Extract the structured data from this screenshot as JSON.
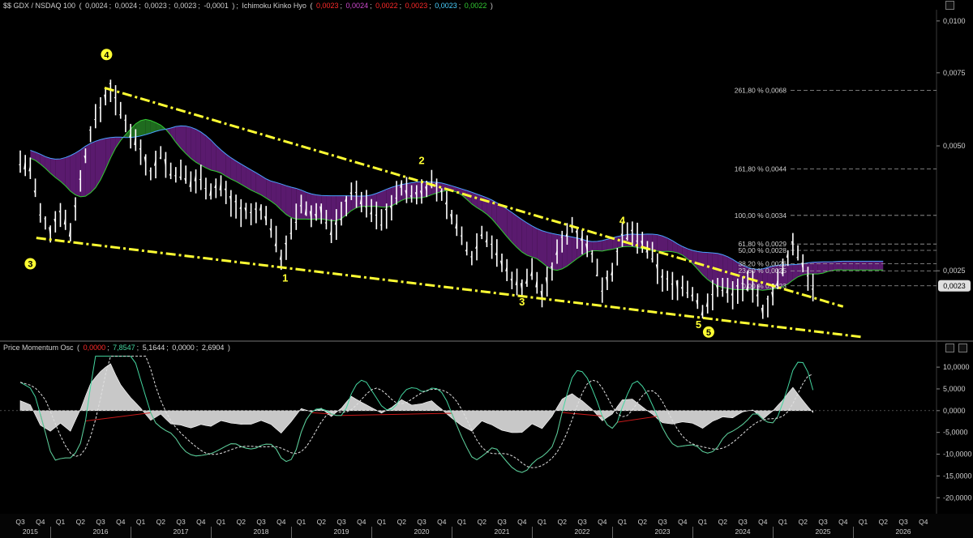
{
  "main_header": {
    "symbol": "$$ GDX / NSDAQ 100",
    "ohlc": [
      "0,0024",
      "0,0024",
      "0,0023",
      "0,0023",
      "-0,0001"
    ],
    "indicator": "Ichimoku Kinko Hyo",
    "ichimoku_values": [
      {
        "text": "0,0023",
        "color": "#ff2a2a"
      },
      {
        "text": "0,0024",
        "color": "#d04ad0"
      },
      {
        "text": "0,0022",
        "color": "#ff2a2a"
      },
      {
        "text": "0,0023",
        "color": "#ff2a2a"
      },
      {
        "text": "0,0023",
        "color": "#4ad0ff"
      },
      {
        "text": "0,0022",
        "color": "#33cc33"
      }
    ]
  },
  "osc_header": {
    "name": "Price Momentum Osc",
    "values": [
      {
        "text": "0,0000",
        "color": "#ff2a2a"
      },
      {
        "text": "7,8547",
        "color": "#44d6a0"
      },
      {
        "text": "5,1644",
        "color": "#dddddd"
      },
      {
        "text": "0,0000",
        "color": "#dddddd"
      },
      {
        "text": "2,6904",
        "color": "#dddddd"
      }
    ]
  },
  "colors": {
    "background": "#000000",
    "price_bars": "#ffffff",
    "cloud_bear": "#5a1a6e",
    "cloud_bull": "#1f6b1f",
    "span_a": "#33cc33",
    "span_b": "#4aa0ff",
    "trendline": "#ffff33",
    "wave_label": "#ffff33",
    "pmo_red": "#cc1a1a",
    "pmo_teal": "#44d6a0",
    "histogram": "#c8c8c8",
    "last_price_tag": "#e0e0e0"
  },
  "chart_data": [
    {
      "type": "line",
      "title": "$$ GDX / NSDAQ 100",
      "y_scale": "log",
      "ylim": [
        0.0017,
        0.0105
      ],
      "y_ticks": [
        {
          "value": 0.01,
          "label": "0,0100"
        },
        {
          "value": 0.0075,
          "label": "0,0075"
        },
        {
          "value": 0.005,
          "label": "0,0050"
        },
        {
          "value": 0.0025,
          "label": "0,0025"
        }
      ],
      "last_price": {
        "value": 0.0023,
        "label": "0,0023"
      },
      "x_quarters": [
        "Q3",
        "Q4",
        "Q1",
        "Q2",
        "Q3",
        "Q4",
        "Q1",
        "Q2",
        "Q3",
        "Q4",
        "Q1",
        "Q2",
        "Q3",
        "Q4",
        "Q1",
        "Q2",
        "Q3",
        "Q4",
        "Q1",
        "Q2",
        "Q3",
        "Q4",
        "Q1",
        "Q2",
        "Q3",
        "Q4",
        "Q1",
        "Q2",
        "Q3",
        "Q4",
        "Q1",
        "Q2",
        "Q3",
        "Q4",
        "Q1",
        "Q2",
        "Q3",
        "Q4",
        "Q1",
        "Q2",
        "Q3",
        "Q4",
        "Q1",
        "Q2",
        "Q3",
        "Q4"
      ],
      "x_years": [
        {
          "label": "2015",
          "quarter_index": 0.5
        },
        {
          "label": "2016",
          "quarter_index": 4
        },
        {
          "label": "2017",
          "quarter_index": 8
        },
        {
          "label": "2018",
          "quarter_index": 12
        },
        {
          "label": "2019",
          "quarter_index": 16
        },
        {
          "label": "2020",
          "quarter_index": 20
        },
        {
          "label": "2021",
          "quarter_index": 24
        },
        {
          "label": "2022",
          "quarter_index": 28
        },
        {
          "label": "2023",
          "quarter_index": 32
        },
        {
          "label": "2024",
          "quarter_index": 36
        },
        {
          "label": "2025",
          "quarter_index": 40
        },
        {
          "label": "2026",
          "quarter_index": 44
        }
      ],
      "series": [
        {
          "name": "$$ GDX / NSDAQ 100",
          "points": [
            [
              0.0,
              0.0046
            ],
            [
              0.5,
              0.0044
            ],
            [
              1.0,
              0.0034
            ],
            [
              1.5,
              0.0031
            ],
            [
              2.0,
              0.0035
            ],
            [
              2.5,
              0.0031
            ],
            [
              3.0,
              0.0041
            ],
            [
              3.5,
              0.0054
            ],
            [
              4.0,
              0.0062
            ],
            [
              4.5,
              0.0069
            ],
            [
              5.0,
              0.006
            ],
            [
              5.5,
              0.0054
            ],
            [
              6.0,
              0.0049
            ],
            [
              6.5,
              0.0043
            ],
            [
              7.0,
              0.0048
            ],
            [
              7.5,
              0.0043
            ],
            [
              8.0,
              0.0043
            ],
            [
              8.5,
              0.0041
            ],
            [
              9.0,
              0.0042
            ],
            [
              9.5,
              0.0039
            ],
            [
              10.0,
              0.004
            ],
            [
              10.5,
              0.0037
            ],
            [
              11.0,
              0.0035
            ],
            [
              11.5,
              0.0034
            ],
            [
              12.0,
              0.0035
            ],
            [
              12.5,
              0.0032
            ],
            [
              13.0,
              0.0027
            ],
            [
              13.5,
              0.0031
            ],
            [
              14.0,
              0.0036
            ],
            [
              14.5,
              0.0034
            ],
            [
              15.0,
              0.0035
            ],
            [
              15.5,
              0.0031
            ],
            [
              16.0,
              0.0034
            ],
            [
              16.5,
              0.0039
            ],
            [
              17.0,
              0.0037
            ],
            [
              17.5,
              0.0035
            ],
            [
              18.0,
              0.0033
            ],
            [
              18.5,
              0.0036
            ],
            [
              19.0,
              0.004
            ],
            [
              19.5,
              0.0038
            ],
            [
              20.0,
              0.0039
            ],
            [
              20.5,
              0.0041
            ],
            [
              21.0,
              0.0038
            ],
            [
              21.5,
              0.0034
            ],
            [
              22.0,
              0.003
            ],
            [
              22.5,
              0.0027
            ],
            [
              23.0,
              0.0031
            ],
            [
              23.5,
              0.0029
            ],
            [
              24.0,
              0.0026
            ],
            [
              24.5,
              0.0024
            ],
            [
              25.0,
              0.0023
            ],
            [
              25.5,
              0.0025
            ],
            [
              26.0,
              0.0022
            ],
            [
              26.5,
              0.0025
            ],
            [
              27.0,
              0.003
            ],
            [
              27.5,
              0.0032
            ],
            [
              28.0,
              0.003
            ],
            [
              28.5,
              0.0027
            ],
            [
              29.0,
              0.0023
            ],
            [
              29.5,
              0.0025
            ],
            [
              30.0,
              0.003
            ],
            [
              30.5,
              0.0031
            ],
            [
              31.0,
              0.0029
            ],
            [
              31.5,
              0.0027
            ],
            [
              32.0,
              0.0024
            ],
            [
              32.5,
              0.0023
            ],
            [
              33.0,
              0.0023
            ],
            [
              33.5,
              0.0022
            ],
            [
              34.0,
              0.002
            ],
            [
              34.5,
              0.0022
            ],
            [
              35.0,
              0.0023
            ],
            [
              35.5,
              0.0022
            ],
            [
              36.0,
              0.0023
            ],
            [
              36.5,
              0.0023
            ],
            [
              37.0,
              0.002
            ],
            [
              37.5,
              0.0022
            ],
            [
              38.0,
              0.0025
            ],
            [
              38.5,
              0.0029
            ],
            [
              39.0,
              0.0026
            ],
            [
              39.5,
              0.0023
            ]
          ]
        }
      ],
      "fibonacci": [
        {
          "value": 0.0068,
          "label": "261,80 % 0,0068"
        },
        {
          "value": 0.0044,
          "label": "161,80 % 0,0044"
        },
        {
          "value": 0.0034,
          "label": "100,00 % 0,0034"
        },
        {
          "value": 0.0029,
          "label": "61,80 % 0,0029"
        },
        {
          "value": 0.0028,
          "label": "50,00 % 0,0028"
        },
        {
          "value": 0.0026,
          "label": "38,20 % 0,0026"
        },
        {
          "value": 0.0025,
          "label": "23,60 % 0,0025"
        },
        {
          "value": 0.0023,
          "label": "0,00 % 0,0023"
        }
      ],
      "wave_labels": [
        {
          "text": "3",
          "circled": true,
          "x": 0.5,
          "y": 0.0026
        },
        {
          "text": "4",
          "circled": true,
          "x": 4.3,
          "y": 0.0083
        },
        {
          "text": "1",
          "circled": false,
          "x": 13.2,
          "y": 0.0024
        },
        {
          "text": "2",
          "circled": false,
          "x": 20.0,
          "y": 0.0046
        },
        {
          "text": "3",
          "circled": false,
          "x": 25.0,
          "y": 0.0021
        },
        {
          "text": "4",
          "circled": false,
          "x": 30.0,
          "y": 0.0033
        },
        {
          "text": "5",
          "circled": false,
          "x": 33.8,
          "y": 0.00185
        },
        {
          "text": "5",
          "circled": true,
          "x": 34.3,
          "y": 0.00178
        }
      ]
    },
    {
      "type": "area",
      "title": "Price Momentum Osc",
      "ylim": [
        -22000,
        13000
      ],
      "y_ticks": [
        10000,
        5000,
        0,
        -5000,
        -10000,
        -15000,
        -20000
      ],
      "y_tick_labels": [
        "10,0000",
        "5,0000",
        "0,0000",
        "-5,0000",
        "-10,0000",
        "-15,0000",
        "-20,0000"
      ]
    }
  ]
}
